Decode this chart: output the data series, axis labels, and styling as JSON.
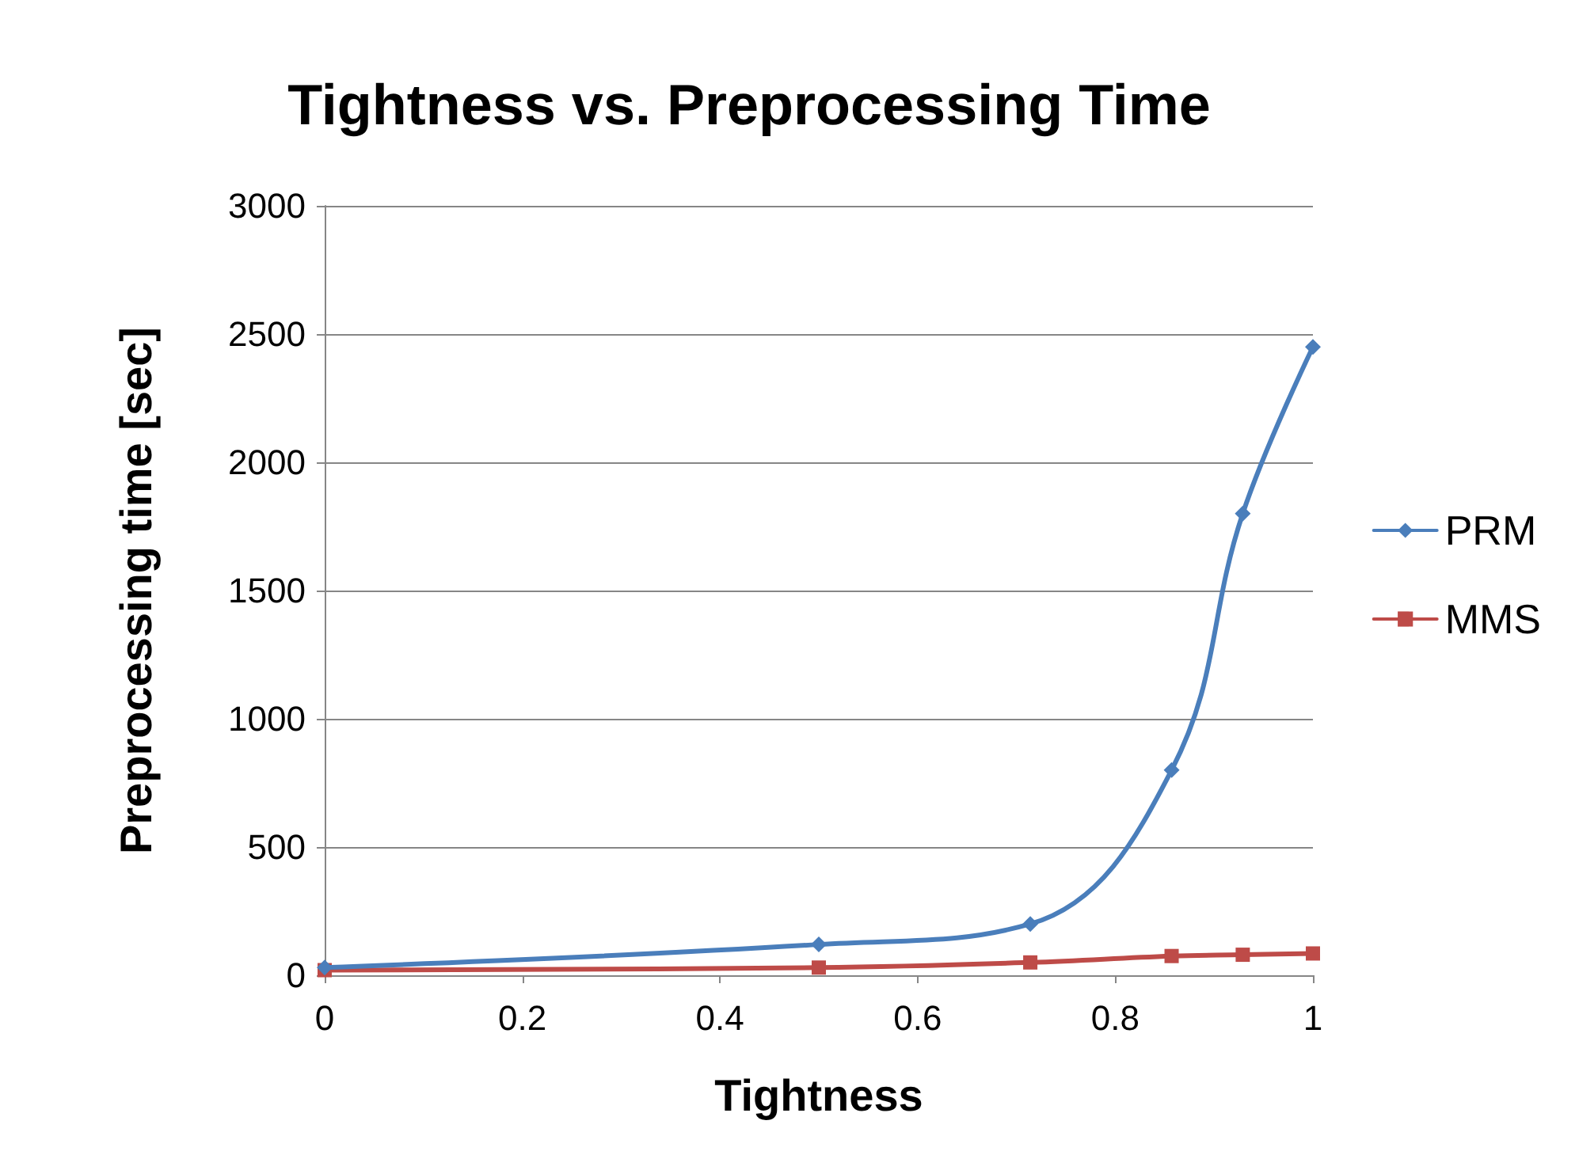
{
  "chart_data": {
    "type": "line",
    "title": "Tightness vs. Preprocessing Time",
    "xlabel": "Tightness",
    "ylabel": "Preprocessing time [sec]",
    "x": [
      0,
      0.5,
      0.714,
      0.857,
      0.929,
      1
    ],
    "series": [
      {
        "name": "PRM",
        "color": "#4a7ebb",
        "marker": "diamond",
        "values": [
          30,
          120,
          200,
          800,
          1800,
          2450
        ]
      },
      {
        "name": "MMS",
        "color": "#be4b48",
        "marker": "square",
        "values": [
          20,
          30,
          50,
          75,
          80,
          85
        ]
      }
    ],
    "xlim": [
      0,
      1
    ],
    "xticks": [
      0,
      0.2,
      0.4,
      0.6,
      0.8,
      1
    ],
    "ylim": [
      0,
      3000
    ],
    "yticks": [
      0,
      500,
      1000,
      1500,
      2000,
      2500,
      3000
    ],
    "grid": "y",
    "legend": "right",
    "line_style": "solid"
  }
}
